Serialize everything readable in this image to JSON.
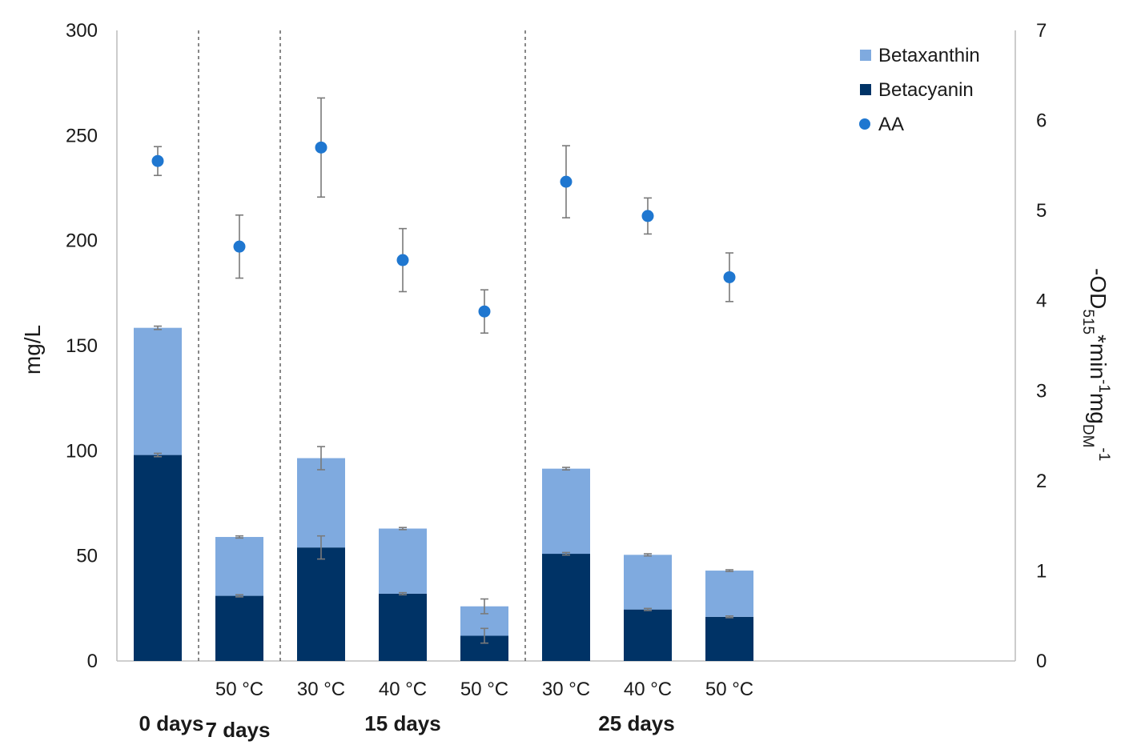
{
  "chart_data": {
    "type": "bar",
    "subtype": "stacked bar with secondary-axis scatter",
    "categories": [
      "",
      "50 °C",
      "30 °C",
      "40 °C",
      "50 °C",
      "30 °C",
      "40 °C",
      "50 °C"
    ],
    "groups": [
      {
        "label": "0 days",
        "indices": [
          0
        ]
      },
      {
        "label": "7 days",
        "indices": [
          1
        ]
      },
      {
        "label": "15 days",
        "indices": [
          2,
          3,
          4
        ]
      },
      {
        "label": "25 days",
        "indices": [
          5,
          6,
          7
        ]
      }
    ],
    "ylabel": "mg/L",
    "ylabel_right": {
      "main": "-OD",
      "sub1": "515",
      "mid1": "*min",
      "sup1": "-1",
      "mid2": "mg",
      "sub2": "DM",
      "sup2": "-1"
    },
    "ylim": [
      0,
      300
    ],
    "yticks": [
      0,
      50,
      100,
      150,
      200,
      250,
      300
    ],
    "ylim_right": [
      0,
      7
    ],
    "yticks_right": [
      0,
      1,
      2,
      3,
      4,
      5,
      6,
      7
    ],
    "series": [
      {
        "name": "Betacyanin",
        "kind": "bar",
        "color": "#003366",
        "values": [
          98,
          31,
          54,
          32,
          12,
          51,
          24.5,
          21
        ],
        "errors": [
          0.8,
          0.5,
          5.5,
          0.5,
          3.5,
          0.6,
          0.5,
          0.4
        ]
      },
      {
        "name": "Betaxanthin",
        "kind": "bar",
        "color": "#7faadf",
        "values": [
          60.5,
          28,
          42.5,
          31,
          14,
          40.5,
          26,
          22
        ],
        "errors": [
          0.8,
          0.5,
          5.5,
          0.5,
          3.5,
          0.6,
          0.5,
          0.4
        ]
      },
      {
        "name": "AA",
        "kind": "scatter",
        "axis": "right",
        "color": "#1f77d0",
        "values": [
          5.55,
          4.6,
          5.7,
          4.45,
          3.88,
          5.32,
          4.94,
          4.26
        ],
        "errors": [
          0.16,
          0.35,
          0.55,
          0.35,
          0.24,
          0.4,
          0.2,
          0.27
        ]
      }
    ],
    "legend": {
      "position": "top-right",
      "entries": [
        "Betaxanthin",
        "Betacyanin",
        "AA"
      ]
    },
    "separators": "dashed vertical lines between day groups",
    "grid": false
  }
}
